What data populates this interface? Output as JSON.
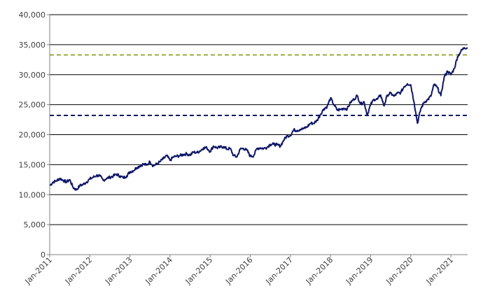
{
  "chart_data": {
    "type": "line",
    "title": "",
    "xlabel": "",
    "ylabel": "",
    "ylim": [
      0,
      40000
    ],
    "y_ticks": [
      0,
      5000,
      10000,
      15000,
      20000,
      25000,
      30000,
      35000,
      40000
    ],
    "y_tick_labels": [
      "0",
      "5,000",
      "10,000",
      "15,000",
      "20,000",
      "25,000",
      "30,000",
      "35,000",
      "40,000"
    ],
    "x_tick_labels": [
      "Jan-2011",
      "Jan-2012",
      "Jan-2013",
      "Jan-2014",
      "Jan-2015",
      "Jan-2016",
      "Jan-2017",
      "Jan-2018",
      "Jan-2019",
      "Jan-2020",
      "Jan-2021"
    ],
    "x_range": [
      "2011-01",
      "2021-06"
    ],
    "grid": "horizontal",
    "legend": "none",
    "series": [
      {
        "color": "#0d1566",
        "points": [
          [
            "2011-01",
            11500
          ],
          [
            "2011-02",
            12100
          ],
          [
            "2011-03",
            12300
          ],
          [
            "2011-04",
            12700
          ],
          [
            "2011-05",
            12400
          ],
          [
            "2011-06",
            12100
          ],
          [
            "2011-07",
            12500
          ],
          [
            "2011-08",
            11200
          ],
          [
            "2011-09",
            10800
          ],
          [
            "2011-10",
            11500
          ],
          [
            "2011-11",
            11700
          ],
          [
            "2011-12",
            12100
          ],
          [
            "2012-01",
            12600
          ],
          [
            "2012-02",
            12900
          ],
          [
            "2012-03",
            13200
          ],
          [
            "2012-04",
            13100
          ],
          [
            "2012-05",
            12400
          ],
          [
            "2012-06",
            12700
          ],
          [
            "2012-07",
            12900
          ],
          [
            "2012-08",
            13100
          ],
          [
            "2012-09",
            13400
          ],
          [
            "2012-10",
            13100
          ],
          [
            "2012-11",
            12800
          ],
          [
            "2012-12",
            13100
          ],
          [
            "2013-01",
            13800
          ],
          [
            "2013-02",
            14000
          ],
          [
            "2013-03",
            14500
          ],
          [
            "2013-04",
            14800
          ],
          [
            "2013-05",
            15100
          ],
          [
            "2013-06",
            14900
          ],
          [
            "2013-07",
            15500
          ],
          [
            "2013-08",
            14800
          ],
          [
            "2013-09",
            15100
          ],
          [
            "2013-10",
            15500
          ],
          [
            "2013-11",
            16000
          ],
          [
            "2013-12",
            16500
          ],
          [
            "2014-01",
            15700
          ],
          [
            "2014-02",
            16300
          ],
          [
            "2014-03",
            16400
          ],
          [
            "2014-04",
            16500
          ],
          [
            "2014-05",
            16700
          ],
          [
            "2014-06",
            16800
          ],
          [
            "2014-07",
            16600
          ],
          [
            "2014-08",
            17100
          ],
          [
            "2014-09",
            17000
          ],
          [
            "2014-10",
            17300
          ],
          [
            "2014-11",
            17800
          ],
          [
            "2014-12",
            17800
          ],
          [
            "2015-01",
            17200
          ],
          [
            "2015-02",
            18100
          ],
          [
            "2015-03",
            17800
          ],
          [
            "2015-04",
            17900
          ],
          [
            "2015-05",
            18000
          ],
          [
            "2015-06",
            17600
          ],
          [
            "2015-07",
            17700
          ],
          [
            "2015-08",
            16500
          ],
          [
            "2015-09",
            16300
          ],
          [
            "2015-10",
            17600
          ],
          [
            "2015-11",
            17700
          ],
          [
            "2015-12",
            17400
          ],
          [
            "2016-01",
            16400
          ],
          [
            "2016-02",
            16500
          ],
          [
            "2016-03",
            17700
          ],
          [
            "2016-04",
            17800
          ],
          [
            "2016-05",
            17700
          ],
          [
            "2016-06",
            17900
          ],
          [
            "2016-07",
            18400
          ],
          [
            "2016-08",
            18400
          ],
          [
            "2016-09",
            18300
          ],
          [
            "2016-10",
            18100
          ],
          [
            "2016-11",
            19100
          ],
          [
            "2016-12",
            19800
          ],
          [
            "2017-01",
            19900
          ],
          [
            "2017-02",
            20800
          ],
          [
            "2017-03",
            20700
          ],
          [
            "2017-04",
            20900
          ],
          [
            "2017-05",
            21000
          ],
          [
            "2017-06",
            21300
          ],
          [
            "2017-07",
            21900
          ],
          [
            "2017-08",
            21900
          ],
          [
            "2017-09",
            22400
          ],
          [
            "2017-10",
            23400
          ],
          [
            "2017-11",
            24300
          ],
          [
            "2017-12",
            24700
          ],
          [
            "2018-01",
            26100
          ],
          [
            "2018-02",
            25000
          ],
          [
            "2018-03",
            24100
          ],
          [
            "2018-04",
            24200
          ],
          [
            "2018-05",
            24400
          ],
          [
            "2018-06",
            24300
          ],
          [
            "2018-07",
            25400
          ],
          [
            "2018-08",
            25900
          ],
          [
            "2018-09",
            26500
          ],
          [
            "2018-10",
            25100
          ],
          [
            "2018-11",
            25500
          ],
          [
            "2018-12",
            23300
          ],
          [
            "2019-01",
            25000
          ],
          [
            "2019-02",
            25900
          ],
          [
            "2019-03",
            25900
          ],
          [
            "2019-04",
            26600
          ],
          [
            "2019-05",
            24800
          ],
          [
            "2019-06",
            26600
          ],
          [
            "2019-07",
            26900
          ],
          [
            "2019-08",
            26400
          ],
          [
            "2019-09",
            26900
          ],
          [
            "2019-10",
            27000
          ],
          [
            "2019-11",
            28000
          ],
          [
            "2019-12",
            28500
          ],
          [
            "2020-01",
            28300
          ],
          [
            "2020-02",
            25400
          ],
          [
            "2020-03",
            21900
          ],
          [
            "2020-04",
            24300
          ],
          [
            "2020-05",
            25400
          ],
          [
            "2020-06",
            25800
          ],
          [
            "2020-07",
            26400
          ],
          [
            "2020-08",
            28400
          ],
          [
            "2020-09",
            27800
          ],
          [
            "2020-10",
            26500
          ],
          [
            "2020-11",
            29600
          ],
          [
            "2020-12",
            30600
          ],
          [
            "2021-01",
            30000
          ],
          [
            "2021-02",
            31000
          ],
          [
            "2021-03",
            33000
          ],
          [
            "2021-04",
            33900
          ],
          [
            "2021-05",
            34500
          ],
          [
            "2021-06",
            34500
          ]
        ]
      }
    ],
    "reference_lines": [
      {
        "y": 33300,
        "color": "#9aaa3a",
        "style": "dashed"
      },
      {
        "y": 23200,
        "color": "#0d1566",
        "style": "dashed"
      }
    ]
  }
}
